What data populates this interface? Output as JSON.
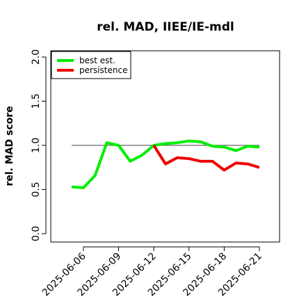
{
  "chart_data": {
    "type": "line",
    "title": "rel. MAD, IIEE/IE-mdl",
    "ylabel": "rel. MAD score",
    "xlabel": "",
    "ylim": [
      0.0,
      2.0
    ],
    "yticks": [
      "0.0",
      "0.5",
      "1.0",
      "1.5",
      "2.0"
    ],
    "xticks": [
      "2025-06-06",
      "2025-06-09",
      "2025-06-12",
      "2025-06-15",
      "2025-06-18",
      "2025-06-21"
    ],
    "x": [
      "2025-06-05",
      "2025-06-06",
      "2025-06-07",
      "2025-06-08",
      "2025-06-09",
      "2025-06-10",
      "2025-06-11",
      "2025-06-12",
      "2025-06-13",
      "2025-06-14",
      "2025-06-15",
      "2025-06-16",
      "2025-06-17",
      "2025-06-18",
      "2025-06-19",
      "2025-06-20",
      "2025-06-21"
    ],
    "reference_line": {
      "y": 1.0,
      "x_start": "2025-06-05",
      "x_end": "2025-06-21",
      "color": "#666666"
    },
    "series": [
      {
        "name": "best est.",
        "color": "#00ee00",
        "values": [
          0.53,
          0.52,
          0.66,
          1.03,
          1.0,
          0.82,
          0.89,
          1.0,
          1.02,
          1.03,
          1.05,
          1.04,
          0.99,
          0.98,
          0.94,
          0.99,
          0.98
        ]
      },
      {
        "name": "persistence",
        "color": "#ee0000",
        "values": [
          null,
          null,
          null,
          null,
          null,
          null,
          null,
          1.0,
          0.79,
          0.86,
          0.85,
          0.82,
          0.82,
          0.72,
          0.8,
          0.79,
          0.75
        ]
      }
    ],
    "legend": {
      "position": "top-left",
      "entries": [
        "best est.",
        "persistence"
      ]
    },
    "grid": false
  }
}
